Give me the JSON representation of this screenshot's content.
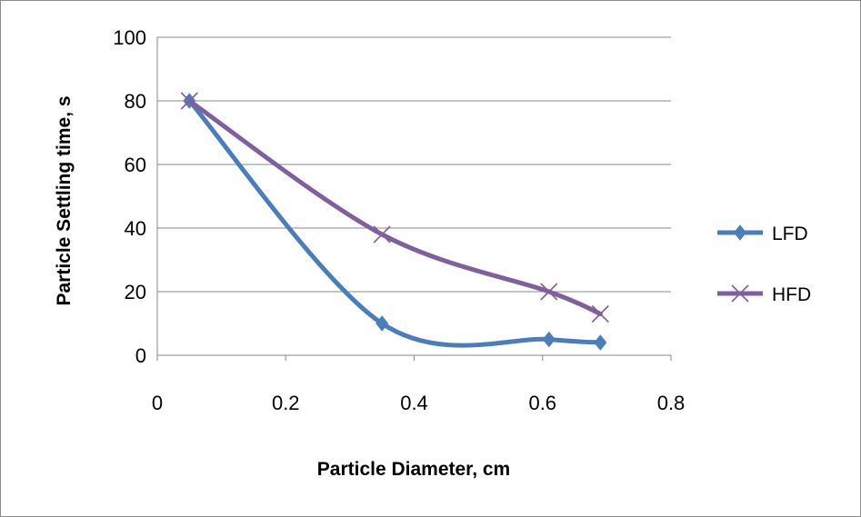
{
  "chart_data": {
    "type": "line",
    "title": "",
    "xlabel": "Particle Diameter, cm",
    "ylabel": "Particle Settling time, s",
    "xlim": [
      0,
      0.8
    ],
    "ylim": [
      0,
      100
    ],
    "xticks": [
      0,
      0.2,
      0.4,
      0.6,
      0.8
    ],
    "yticks": [
      0,
      20,
      40,
      60,
      80,
      100
    ],
    "xtick_labels": [
      "0",
      "0.2",
      "0.4",
      "0.6",
      "0.8"
    ],
    "ytick_labels": [
      "0",
      "20",
      "40",
      "60",
      "80",
      "100"
    ],
    "grid": "horizontal",
    "smooth": true,
    "legend": "right",
    "series": [
      {
        "name": "LFD",
        "color": "#4a7ebb",
        "marker": "diamond",
        "x": [
          0.05,
          0.35,
          0.61,
          0.69
        ],
        "y": [
          80,
          10,
          5,
          4
        ]
      },
      {
        "name": "HFD",
        "color": "#7f5fa0",
        "marker": "x",
        "x": [
          0.05,
          0.35,
          0.61,
          0.69
        ],
        "y": [
          80,
          38,
          20,
          13
        ]
      }
    ]
  }
}
